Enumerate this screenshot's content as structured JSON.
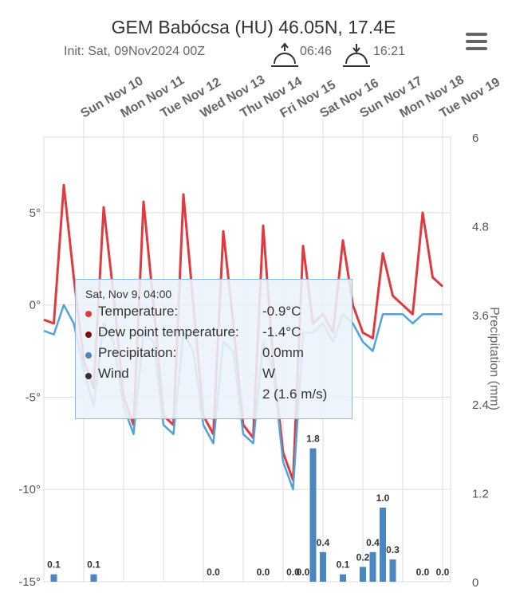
{
  "chart_data": {
    "type": "meteogram",
    "title": "GEM Babócsa (HU) 46.05N, 17.4E",
    "subtitle": "Init: Sat, 09Nov2024 00Z",
    "sunrise": "06:46",
    "sunset": "16:21",
    "categories": [
      null,
      null,
      null,
      null,
      "Sun Nov 10",
      null,
      null,
      null,
      "Mon Nov 11",
      null,
      null,
      null,
      "Tue Nov 12",
      null,
      null,
      null,
      "Wed Nov 13",
      null,
      null,
      null,
      "Thu Nov 14",
      null,
      null,
      null,
      "Fri Nov 15",
      null,
      null,
      null,
      "Sat Nov 16",
      null,
      null,
      null,
      "Sun Nov 17",
      null,
      null,
      null,
      "Mon Nov 18",
      null,
      null,
      null,
      "Tue Nov 19"
    ],
    "ylim": [
      -15,
      9.1
    ],
    "yticks": [
      {
        "value": -15,
        "label": "-15°"
      },
      {
        "value": -10,
        "label": "-10°"
      },
      {
        "value": -5,
        "label": "-5°"
      },
      {
        "value": 0,
        "label": "0°"
      },
      {
        "value": 5,
        "label": "5°"
      }
    ],
    "y2lim": [
      0,
      6
    ],
    "y2ticks": [
      0,
      1.2,
      2.4,
      3.6,
      4.8,
      6
    ],
    "y2label": "Precipitation (mm)",
    "grid": true,
    "series": [
      {
        "name": "Temperature",
        "color": "#e0393e",
        "values": [
          -0.8,
          -1.0,
          6.5,
          1.5,
          -3,
          -4.5,
          5.3,
          0.5,
          -5,
          -6.5,
          5.6,
          0,
          -6,
          -6.5,
          6.0,
          0,
          -6,
          -7,
          4.0,
          -1,
          -6.5,
          -7.2,
          4.3,
          -3,
          -8,
          -9.5,
          3.2,
          -1,
          -0.5,
          -1.5,
          3.5,
          0,
          -1.5,
          -1.8,
          2.8,
          0.5,
          0,
          -0.5,
          5.0,
          1.5,
          1.0
        ]
      },
      {
        "name": "Dew point temperature",
        "color": "#4fa3e0",
        "values": [
          -1.4,
          -1.6,
          0.0,
          -1.0,
          -3.5,
          -5.5,
          -1.0,
          -2.0,
          -5.5,
          -7.0,
          -1.5,
          -2.0,
          -6.5,
          -7.0,
          -1.5,
          -2.5,
          -6.5,
          -7.5,
          -2.0,
          -2.5,
          -7.0,
          -7.5,
          -2.0,
          -3.5,
          -8.5,
          -10.0,
          -1.5,
          -1.5,
          -1.0,
          -2.0,
          -0.5,
          -1.0,
          -2.0,
          -2.5,
          -0.5,
          -0.5,
          -0.5,
          -1.0,
          -0.5,
          -0.5,
          -0.5
        ]
      },
      {
        "name": "Precipitation",
        "color": "#4a86c0",
        "axis": "y2",
        "values": [
          0,
          0.1,
          0,
          0,
          0,
          0.1,
          0,
          0,
          0,
          0,
          0,
          0,
          0,
          0,
          0,
          0,
          0,
          0.0,
          0,
          0,
          0,
          0,
          0.0,
          0,
          0,
          0.0,
          0.0,
          1.8,
          0.4,
          0,
          0.1,
          0,
          0.2,
          0.4,
          1.0,
          0.3,
          0,
          0,
          0.0,
          0,
          0.0
        ],
        "value_labels": [
          null,
          "0.1",
          null,
          null,
          null,
          "0.1",
          null,
          null,
          null,
          null,
          null,
          null,
          null,
          null,
          null,
          null,
          null,
          "0.0",
          null,
          null,
          null,
          null,
          "0.0",
          null,
          null,
          "0.0",
          "0.0",
          "1.8",
          "0.4",
          null,
          "0.1",
          null,
          "0.2",
          "0.4",
          "1.0",
          "0.3",
          null,
          null,
          "0.0",
          null,
          "0.0"
        ]
      }
    ],
    "tooltip": {
      "header": "Sat, Nov 9, 04:00",
      "rows": [
        {
          "label": "Temperature:",
          "value": "-0.9°C",
          "color": "#e53935"
        },
        {
          "label": "Dew point temperature:",
          "value": "-1.4°C",
          "color": "#7b1010"
        },
        {
          "label": "Precipitation:",
          "value": "0.0mm",
          "color": "#4a86c0"
        },
        {
          "label": "Wind",
          "value": "W",
          "value2": "2 (1.6 m/s)",
          "color": "#333333"
        }
      ]
    }
  }
}
